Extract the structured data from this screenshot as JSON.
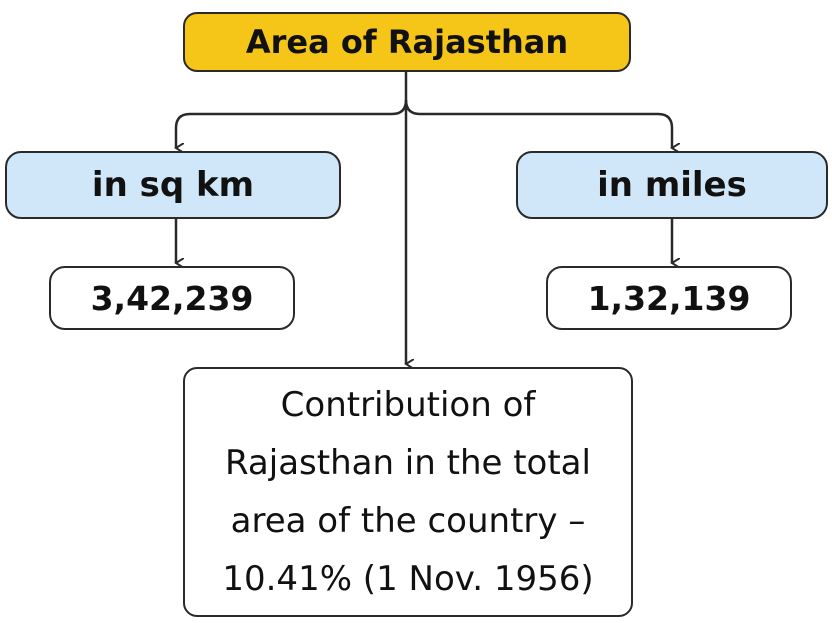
{
  "diagram": {
    "title": "Area of Rajasthan",
    "branches": [
      {
        "unit": "in sq km",
        "value": "3,42,239"
      },
      {
        "unit": "in miles",
        "value": "1,32,139"
      }
    ],
    "note": {
      "lines": [
        "Contribution of",
        "Rajasthan in the total",
        "area of the country –",
        "10.41% (1 Nov. 1956)"
      ]
    }
  },
  "colors": {
    "title_fill": "#f5c518",
    "unit_fill": "#cfe7f8",
    "value_fill": "#ffffff",
    "stroke": "#2a2a2a"
  }
}
